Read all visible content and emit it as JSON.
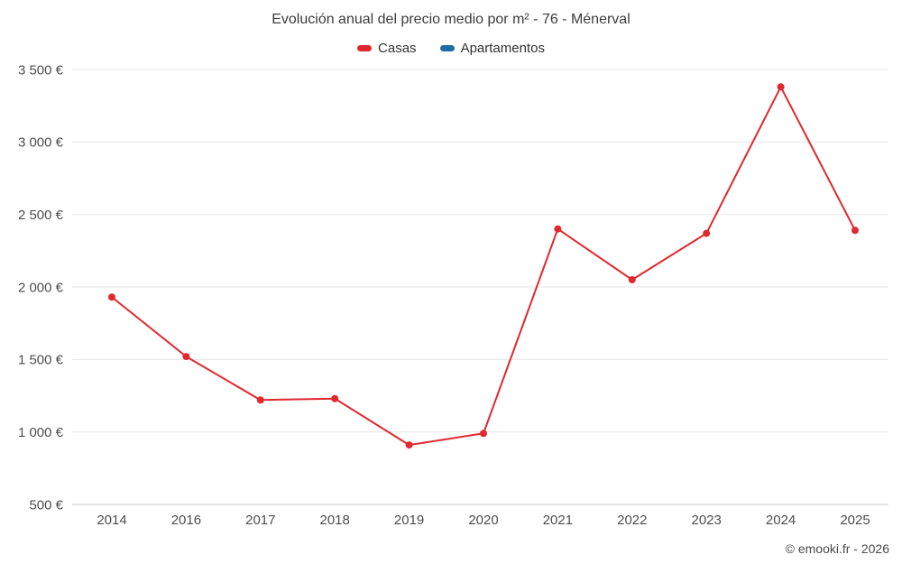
{
  "page": {
    "credit": "© emooki.fr - 2026"
  },
  "chart_data": {
    "type": "line",
    "title": "Evolución anual del precio medio por m² - 76 - Ménerval",
    "categories": [
      "2014",
      "2016",
      "2017",
      "2018",
      "2019",
      "2020",
      "2021",
      "2022",
      "2023",
      "2024",
      "2025"
    ],
    "series": [
      {
        "name": "Casas",
        "color": "#e0282e",
        "values": [
          1930,
          1520,
          1220,
          1230,
          910,
          990,
          2400,
          2050,
          2370,
          3380,
          2390
        ]
      },
      {
        "name": "Apartamentos",
        "color": "#1c6ea4",
        "values": []
      }
    ],
    "xlabel": "",
    "ylabel": "",
    "ytick_format": "{value} €",
    "ytick_labels": [
      "500 €",
      "1 000 €",
      "1 500 €",
      "2 000 €",
      "2 500 €",
      "3 000 €",
      "3 500 €"
    ],
    "ylim": [
      500,
      3500
    ],
    "ytick_step": 500,
    "grid": true,
    "legend_position": "top"
  }
}
